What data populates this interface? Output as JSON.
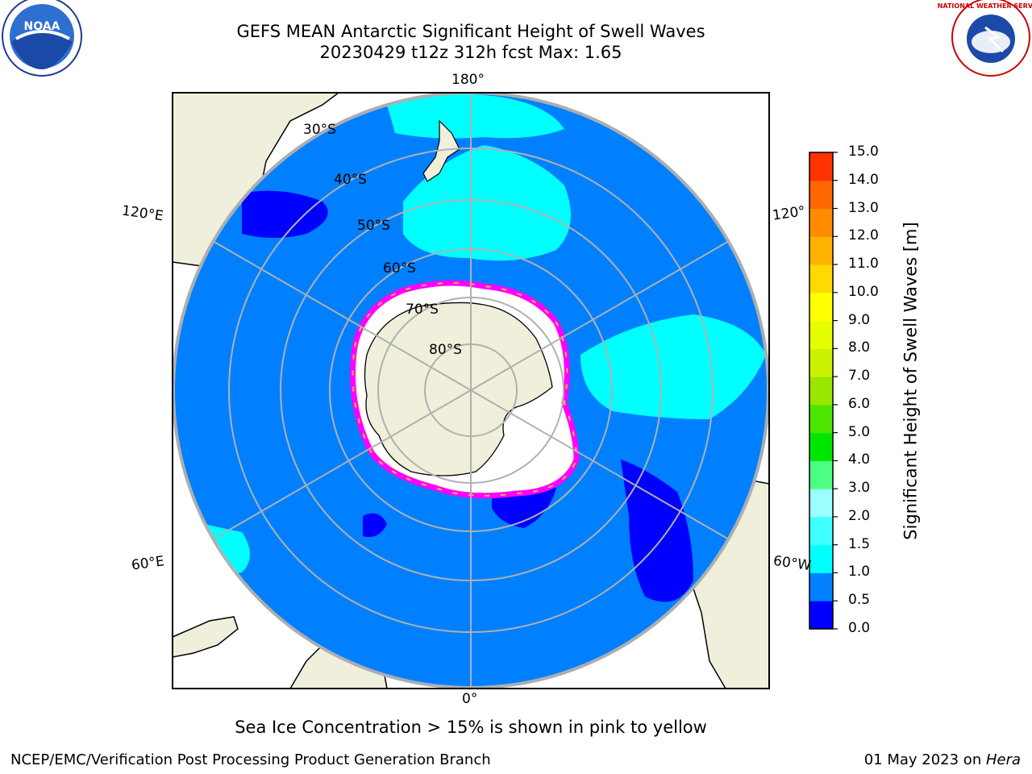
{
  "header": {
    "title_line1": "GEFS MEAN Antarctic Significant Height of Swell Waves",
    "title_line2": "20230429 t12z 312h fcst   Max: 1.65"
  },
  "logos": {
    "left": {
      "name": "noaa-logo",
      "text": "NOAA"
    },
    "right": {
      "name": "national-weather-service-logo",
      "text": "NATIONAL WEATHER SERVICE"
    }
  },
  "map": {
    "projection": "south-polar-stereographic",
    "longitude_labels": [
      "180°",
      "120°E",
      "120°",
      "60°E",
      "60°W",
      "0°"
    ],
    "latitude_labels": [
      "30°S",
      "40°S",
      "50°S",
      "60°S",
      "70°S",
      "80°S"
    ],
    "ocean_color": "#0080ff",
    "swell_colors": {
      "low": "#0000ff",
      "mid": "#00ffff"
    },
    "land_color": "#efefdb",
    "ice_color": "#ffffff",
    "ice_edge_colors": [
      "#ff00ff",
      "#ff66cc",
      "#ffb833"
    ]
  },
  "colorbar": {
    "label": "Significant Height of Swell Waves [m]",
    "ticks": [
      "0.0",
      "0.5",
      "1.0",
      "1.5",
      "2.0",
      "3.0",
      "4.0",
      "5.0",
      "6.0",
      "7.0",
      "8.0",
      "9.0",
      "10.0",
      "11.0",
      "12.0",
      "13.0",
      "14.0",
      "15.0"
    ],
    "colors": [
      "#0000ff",
      "#0080ff",
      "#00ffff",
      "#40ffff",
      "#99ffff",
      "#4dff80",
      "#00e600",
      "#4de600",
      "#99e600",
      "#ccf200",
      "#e6ff00",
      "#ffff00",
      "#ffd900",
      "#ffb300",
      "#ff8c00",
      "#ff6600",
      "#ff3300"
    ]
  },
  "caption": "Sea Ice Concentration > 15% is shown in pink to yellow",
  "footer": {
    "left": "NCEP/EMC/Verification Post Processing Product Generation Branch",
    "right_prefix": "01 May 2023 on ",
    "right_host": "Hera"
  }
}
